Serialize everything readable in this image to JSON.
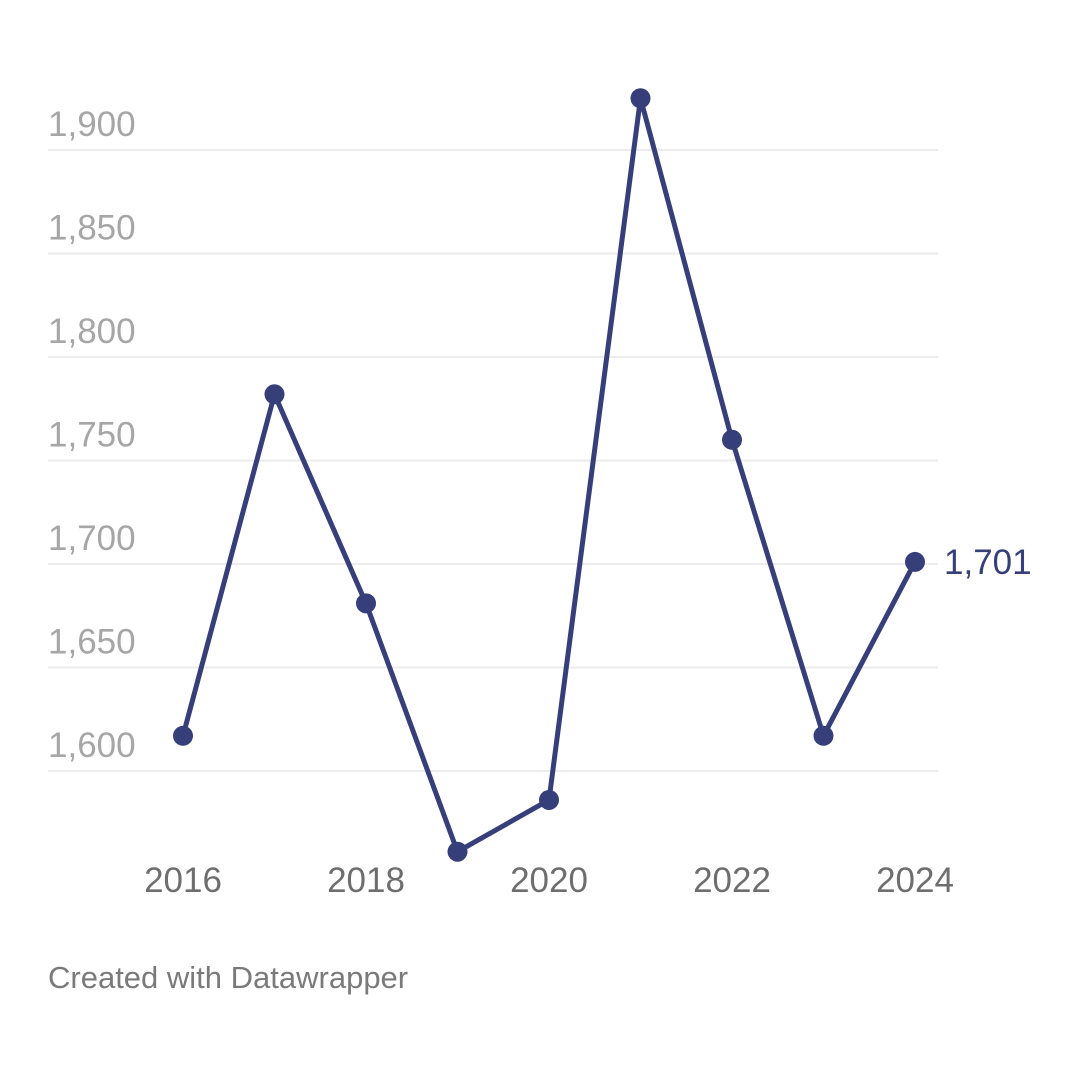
{
  "chart_data": {
    "type": "line",
    "title": "",
    "xlabel": "",
    "ylabel": "",
    "x": [
      2016,
      2017,
      2018,
      2019,
      2020,
      2021,
      2022,
      2023,
      2024
    ],
    "series": [
      {
        "values": [
          1617,
          1782,
          1681,
          1561,
          1586,
          1925,
          1760,
          1617,
          1701
        ],
        "color": "#363f7a"
      }
    ],
    "y_ticks": [
      1600,
      1650,
      1700,
      1750,
      1800,
      1850,
      1900
    ],
    "y_tick_labels": [
      "1,600",
      "1,650",
      "1,700",
      "1,750",
      "1,800",
      "1,850",
      "1,900"
    ],
    "x_ticks": [
      2016,
      2018,
      2020,
      2022,
      2024
    ],
    "x_tick_labels": [
      "2016",
      "2018",
      "2020",
      "2022",
      "2024"
    ],
    "end_label": "1,701",
    "grid": true,
    "legend": "none"
  },
  "footer": {
    "credit": "Created with Datawrapper"
  }
}
